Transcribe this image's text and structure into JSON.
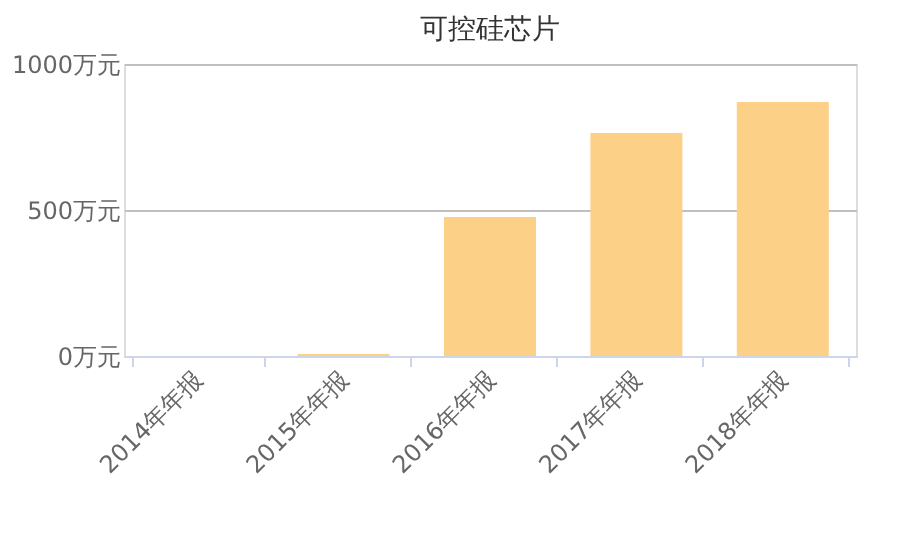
{
  "chart_data": {
    "type": "bar",
    "title": "可控硅芯片",
    "categories": [
      "2014年年报",
      "2015年年报",
      "2016年年报",
      "2017年年报",
      "2018年年报"
    ],
    "values": [
      0,
      7,
      476,
      764,
      870
    ],
    "color": "#fdd088",
    "ylim": [
      0,
      1000
    ],
    "yticks": [
      {
        "value": 0,
        "label": "0万元"
      },
      {
        "value": 500,
        "label": "500万元"
      },
      {
        "value": 1000,
        "label": "1000万元"
      }
    ],
    "grid": "y"
  }
}
